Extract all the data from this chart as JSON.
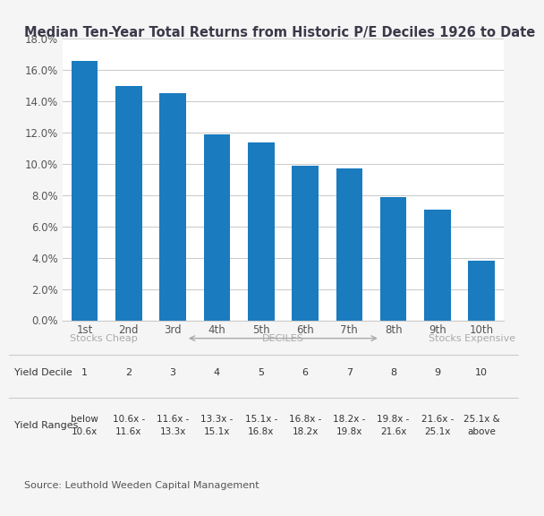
{
  "title": "Median Ten-Year Total Returns from Historic P/E Deciles 1926 to Date",
  "categories": [
    "1st",
    "2nd",
    "3rd",
    "4th",
    "5th",
    "6th",
    "7th",
    "8th",
    "9th",
    "10th"
  ],
  "values": [
    16.6,
    15.0,
    14.5,
    11.9,
    11.4,
    9.9,
    9.7,
    7.9,
    7.1,
    3.8
  ],
  "bar_color": "#1a7bbf",
  "ylim": [
    0,
    0.18
  ],
  "yticks": [
    0.0,
    0.02,
    0.04,
    0.06,
    0.08,
    0.1,
    0.12,
    0.14,
    0.16,
    0.18
  ],
  "ytick_labels": [
    "0.0%",
    "2.0%",
    "4.0%",
    "6.0%",
    "8.0%",
    "10.0%",
    "12.0%",
    "14.0%",
    "16.0%",
    "18.0%"
  ],
  "background_color": "#f5f5f5",
  "plot_bg_color": "#ffffff",
  "grid_color": "#cccccc",
  "decile_label": "DECILES",
  "cheap_label": "Stocks Cheap",
  "expensive_label": "Stocks Expensive",
  "yield_decile_label": "Yield Decile",
  "yield_ranges_label": "Yield Ranges",
  "yield_deciles": [
    "1",
    "2",
    "3",
    "4",
    "5",
    "6",
    "7",
    "8",
    "9",
    "10"
  ],
  "yield_ranges": [
    "below\n10.6x",
    "10.6x -\n11.6x",
    "11.6x -\n13.3x",
    "13.3x -\n15.1x",
    "15.1x -\n16.8x",
    "16.8x -\n18.2x",
    "18.2x -\n19.8x",
    "19.8x -\n21.6x",
    "21.6x -\n25.1x",
    "25.1x &\nabove"
  ],
  "source_text": "Source: Leuthold Weeden Capital Management",
  "title_fontsize": 10.5,
  "axis_fontsize": 8.5,
  "table_fontsize": 8,
  "range_fontsize": 7.5,
  "source_fontsize": 8,
  "arrow_fontsize": 8,
  "top_bar_color": "#3a3a4a"
}
